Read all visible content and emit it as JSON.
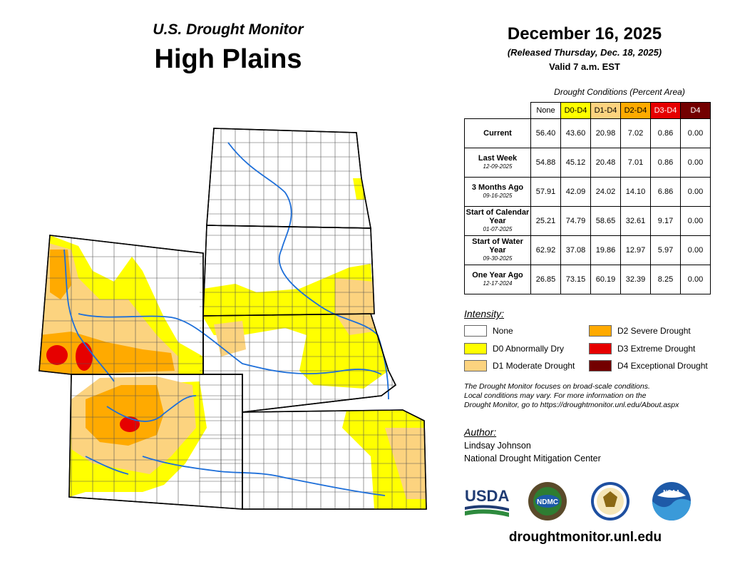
{
  "header": {
    "subtitle": "U.S. Drought Monitor",
    "title": "High Plains",
    "date": "December 16, 2025",
    "released": "(Released Thursday, Dec. 18, 2025)",
    "valid": "Valid 7 a.m. EST"
  },
  "table": {
    "caption": "Drought Conditions (Percent Area)",
    "columns": [
      {
        "label": "None",
        "color": "#ffffff"
      },
      {
        "label": "D0-D4",
        "color": "#ffff00"
      },
      {
        "label": "D1-D4",
        "color": "#fcd37f"
      },
      {
        "label": "D2-D4",
        "color": "#ffaa00"
      },
      {
        "label": "D3-D4",
        "color": "#e60000"
      },
      {
        "label": "D4",
        "color": "#730000"
      }
    ],
    "rows": [
      {
        "label": "Current",
        "date": "",
        "values": [
          "56.40",
          "43.60",
          "20.98",
          "7.02",
          "0.86",
          "0.00"
        ]
      },
      {
        "label": "Last Week",
        "date": "12-09-2025",
        "values": [
          "54.88",
          "45.12",
          "20.48",
          "7.01",
          "0.86",
          "0.00"
        ]
      },
      {
        "label": "3 Months Ago",
        "date": "09-16-2025",
        "values": [
          "57.91",
          "42.09",
          "24.02",
          "14.10",
          "6.86",
          "0.00"
        ]
      },
      {
        "label": "Start of Calendar Year",
        "date": "01-07-2025",
        "values": [
          "25.21",
          "74.79",
          "58.65",
          "32.61",
          "9.17",
          "0.00"
        ]
      },
      {
        "label": "Start of Water Year",
        "date": "09-30-2025",
        "values": [
          "62.92",
          "37.08",
          "19.86",
          "12.97",
          "5.97",
          "0.00"
        ]
      },
      {
        "label": "One Year Ago",
        "date": "12-17-2024",
        "values": [
          "26.85",
          "73.15",
          "60.19",
          "32.39",
          "8.25",
          "0.00"
        ]
      }
    ]
  },
  "legend": {
    "title": "Intensity:",
    "items": [
      {
        "label": "None",
        "color": "#ffffff"
      },
      {
        "label": "D0 Abnormally Dry",
        "color": "#ffff00"
      },
      {
        "label": "D1 Moderate Drought",
        "color": "#fcd37f"
      },
      {
        "label": "D2 Severe Drought",
        "color": "#ffaa00"
      },
      {
        "label": "D3 Extreme Drought",
        "color": "#e60000"
      },
      {
        "label": "D4 Exceptional Drought",
        "color": "#730000"
      }
    ]
  },
  "note": {
    "line1": "The Drought Monitor focuses on broad-scale conditions.",
    "line2": "Local conditions may vary. For more information on the",
    "line3": "Drought Monitor, go to https://droughtmonitor.unl.edu/About.aspx"
  },
  "author": {
    "title": "Author:",
    "name": "Lindsay Johnson",
    "org": "National Drought Mitigation Center"
  },
  "logos": {
    "usda": "USDA",
    "ndmc": "NDMC",
    "noaa": "NOAA"
  },
  "footer": {
    "url": "droughtmonitor.unl.edu"
  },
  "map": {
    "region": "High Plains",
    "colors": {
      "none": "#ffffff",
      "d0": "#ffff00",
      "d1": "#fcd37f",
      "d2": "#ffaa00",
      "d3": "#e60000",
      "rivers": "#1e6fd9",
      "borders": "#000000"
    }
  }
}
